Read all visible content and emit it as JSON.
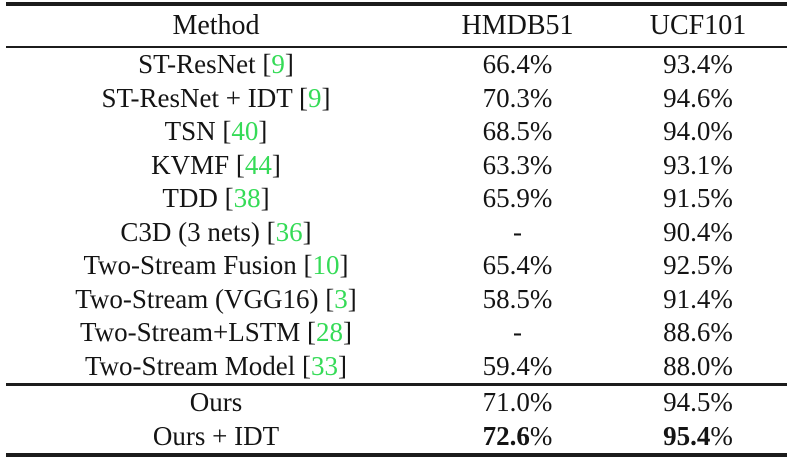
{
  "page": {
    "background": "#ffffff"
  },
  "table": {
    "citation_color": "#35db57",
    "text_color": "#141414",
    "rule_color": "#1c1c1c",
    "columns": [
      "Method",
      "HMDB51",
      "UCF101"
    ],
    "rows": [
      {
        "method": "ST-ResNet",
        "citation": "9",
        "hmdb51": "66.4%",
        "ucf101": "93.4%",
        "bold": false
      },
      {
        "method": "ST-ResNet + IDT",
        "citation": "9",
        "hmdb51": "70.3%",
        "ucf101": "94.6%",
        "bold": false
      },
      {
        "method": "TSN",
        "citation": "40",
        "hmdb51": "68.5%",
        "ucf101": "94.0%",
        "bold": false
      },
      {
        "method": "KVMF",
        "citation": "44",
        "hmdb51": "63.3%",
        "ucf101": "93.1%",
        "bold": false
      },
      {
        "method": "TDD",
        "citation": "38",
        "hmdb51": "65.9%",
        "ucf101": "91.5%",
        "bold": false
      },
      {
        "method": "C3D (3 nets)",
        "citation": "36",
        "hmdb51": "-",
        "ucf101": "90.4%",
        "bold": false
      },
      {
        "method": "Two-Stream Fusion",
        "citation": "10",
        "hmdb51": "65.4%",
        "ucf101": "92.5%",
        "bold": false
      },
      {
        "method": "Two-Stream (VGG16)",
        "citation": "3",
        "hmdb51": "58.5%",
        "ucf101": "91.4%",
        "bold": false
      },
      {
        "method": "Two-Stream+LSTM",
        "citation": "28",
        "hmdb51": "-",
        "ucf101": "88.6%",
        "bold": false
      },
      {
        "method": "Two-Stream Model",
        "citation": "33",
        "hmdb51": "59.4%",
        "ucf101": "88.0%",
        "bold": false
      }
    ],
    "summary_rows": [
      {
        "method": "Ours",
        "citation": null,
        "hmdb51": "71.0%",
        "ucf101": "94.5%",
        "bold": false
      },
      {
        "method": "Ours + IDT",
        "citation": null,
        "hmdb51": "72.6%",
        "ucf101": "95.4%",
        "bold": true
      }
    ]
  }
}
